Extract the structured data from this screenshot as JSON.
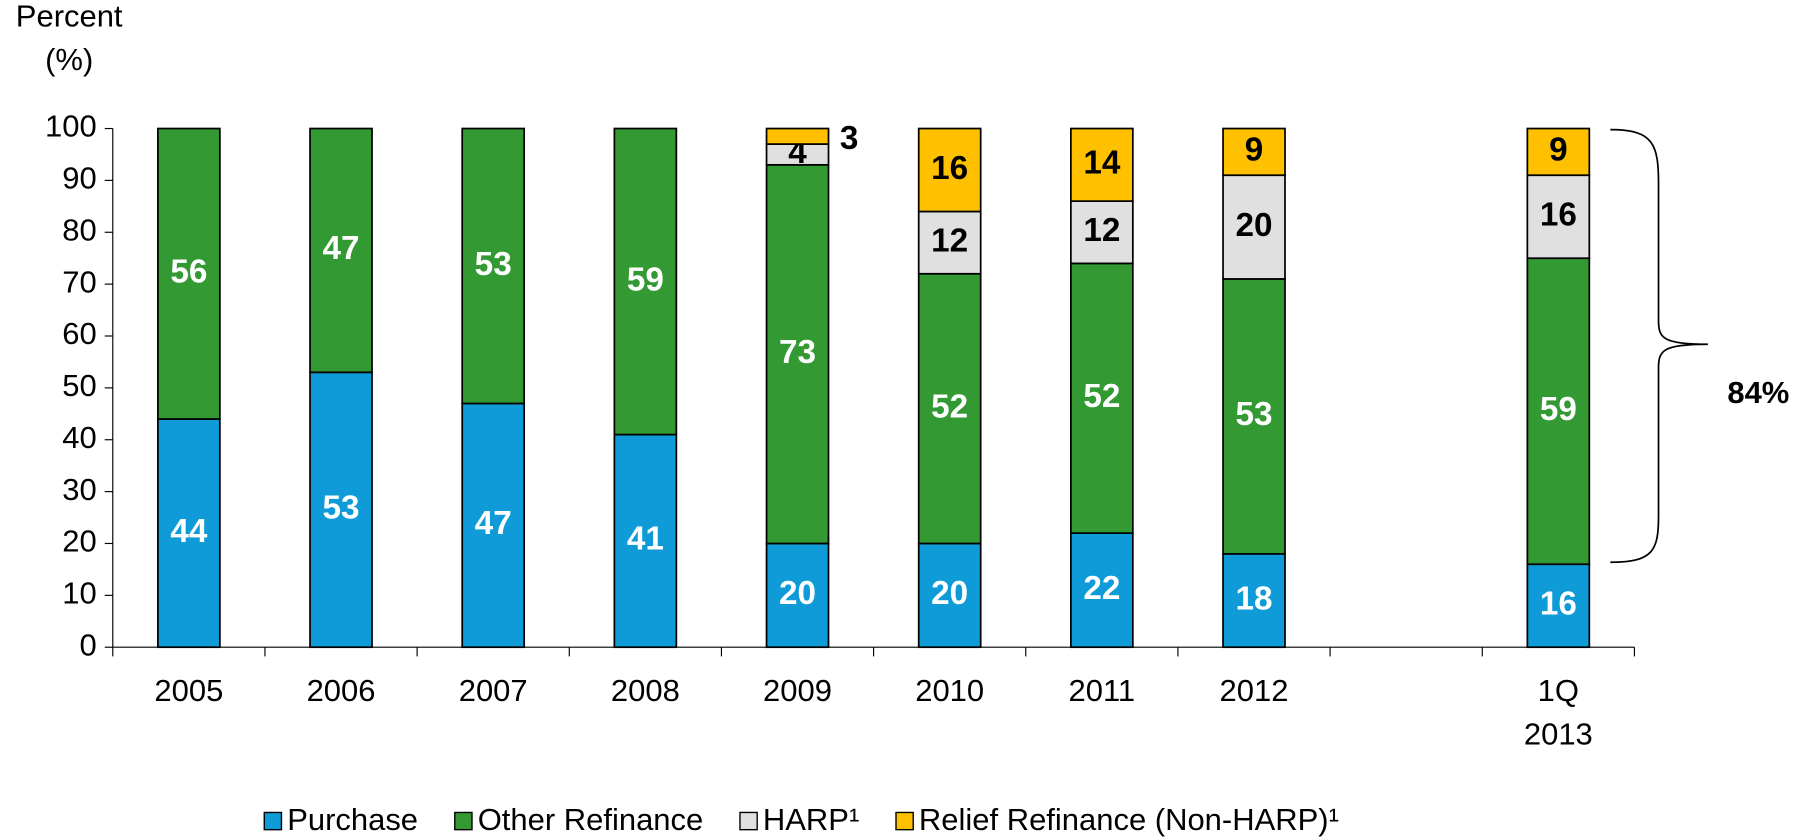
{
  "chart_data": {
    "type": "stacked_bar",
    "y_label": "Percent (%)",
    "categories": [
      "2005",
      "2006",
      "2007",
      "2008",
      "2009",
      "2010",
      "2011",
      "2012",
      null,
      "1Q 2013"
    ],
    "series": [
      {
        "name": "Purchase",
        "color": "#0f9bd7",
        "label_color": "#ffffff",
        "values": [
          44,
          53,
          47,
          41,
          20,
          20,
          22,
          18,
          null,
          16
        ]
      },
      {
        "name": "Other Refinance",
        "color": "#339933",
        "label_color": "#ffffff",
        "values": [
          56,
          47,
          53,
          59,
          73,
          52,
          52,
          53,
          null,
          59
        ]
      },
      {
        "name": "HARP¹",
        "color": "#e0e0e0",
        "label_color": "#000000",
        "values": [
          null,
          null,
          null,
          null,
          4,
          12,
          12,
          20,
          null,
          16
        ]
      },
      {
        "name": "Relief Refinance (Non-HARP)¹",
        "color": "#ffc000",
        "label_color": "#000000",
        "values": [
          null,
          null,
          null,
          null,
          3,
          16,
          14,
          9,
          null,
          9
        ]
      }
    ],
    "ylim": [
      0,
      100
    ],
    "yticks": [
      0,
      10,
      20,
      30,
      40,
      50,
      60,
      70,
      80,
      90,
      100
    ],
    "annotation": "84%",
    "legend": "bottom"
  }
}
